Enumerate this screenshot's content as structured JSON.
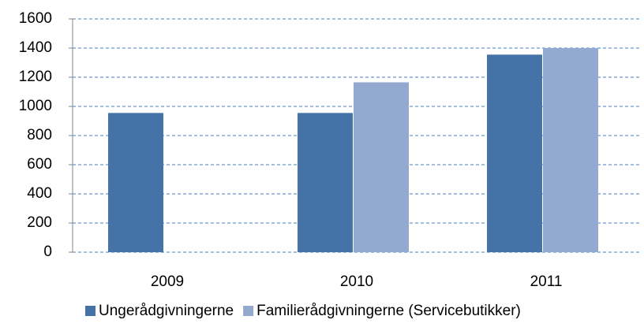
{
  "chart_data": {
    "type": "bar",
    "categories": [
      "2009",
      "2010",
      "2011"
    ],
    "series": [
      {
        "name": "Ungerådgivningerne",
        "color": "#4572a7",
        "values": [
          955,
          955,
          1355
        ]
      },
      {
        "name": "Familierådgivningerne (Servicebutikker)",
        "color": "#93a9cf",
        "values": [
          null,
          1165,
          1400
        ]
      }
    ],
    "ylim": [
      0,
      1600
    ],
    "yticks": [
      0,
      200,
      400,
      600,
      800,
      1000,
      1200,
      1400,
      1600
    ],
    "grid": true,
    "legend": "bottom"
  }
}
